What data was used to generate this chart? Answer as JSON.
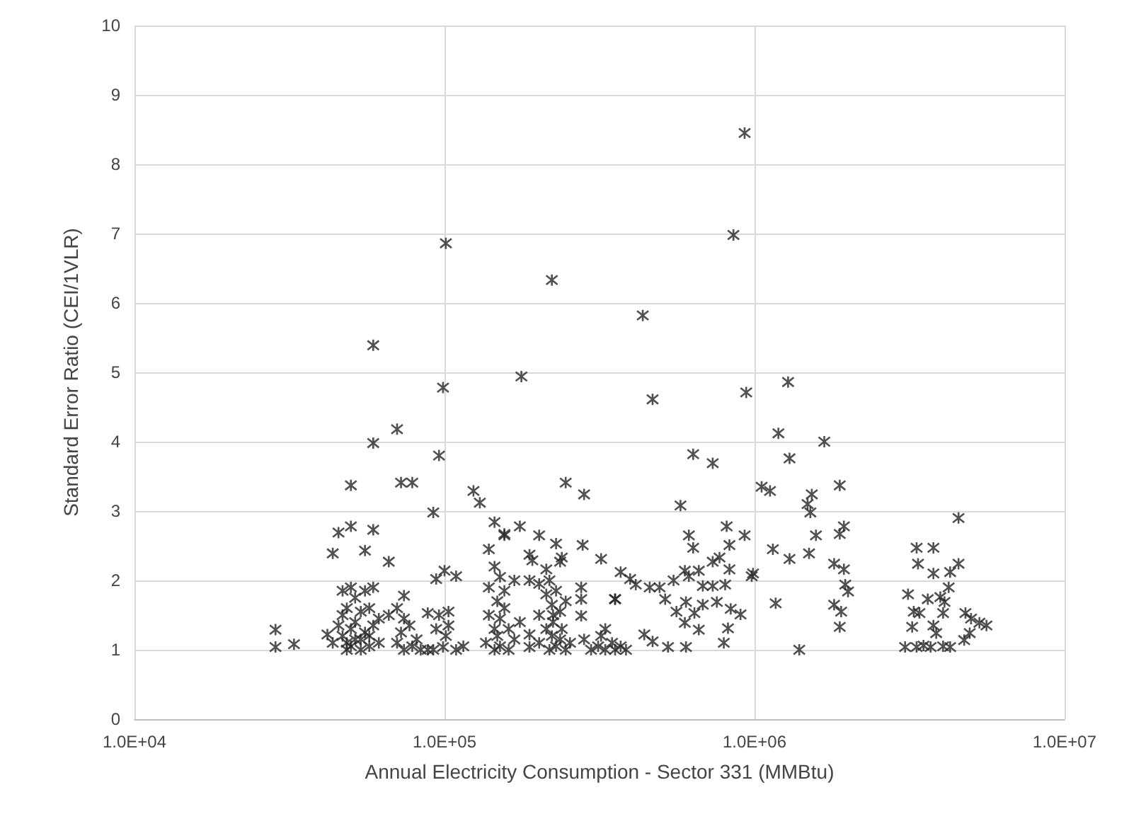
{
  "chart_data": {
    "type": "scatter",
    "xlabel": "Annual Electricity Consumption - Sector 331 (MMBtu)",
    "ylabel": "Standard Error Ratio (CEI/1VLR)",
    "log": "x",
    "grid": true,
    "marker": "cross",
    "xlim": [
      10000,
      10000000
    ],
    "xticks": [
      {
        "value": 10000,
        "label": "1.0E+04"
      },
      {
        "value": 100000,
        "label": "1.0E+05"
      },
      {
        "value": 1000000,
        "label": "1.0E+06"
      },
      {
        "value": 10000000,
        "label": "1.0E+07"
      }
    ],
    "ylim": [
      0,
      10
    ],
    "yticks": [
      0,
      1,
      2,
      3,
      4,
      5,
      6,
      7,
      8,
      9,
      10
    ],
    "series": [
      {
        "color": "#262626",
        "x": [
          28500,
          28500,
          32700,
          41900,
          49900,
          58900,
          70300,
          96000,
          98900,
          72400,
          78700,
          92000,
          124000,
          130000,
          145000,
          156000,
          45500,
          49900,
          58900,
          43600,
          55400,
          66100,
          94000,
          100000,
          109000,
          74000,
          929000,
          855000,
          101000,
          222000,
          436000,
          58900,
          46900,
          46900,
          46900,
          48400,
          48400,
          49900,
          49900,
          49900,
          51500,
          51500,
          51500,
          53700,
          53700,
          55400,
          55400,
          57200,
          57200,
          58900,
          58900,
          61400,
          61400,
          57200,
          53700,
          48400,
          45500,
          43600,
          66100,
          70300,
          72400,
          74000,
          77100,
          78700,
          81300,
          83800,
          74000,
          70300,
          88300,
          88300,
          92000,
          94000,
          96000,
          98900,
          101000,
          103000,
          103000,
          109000,
          115000,
          136000,
          139000,
          139000,
          139000,
          145000,
          145000,
          145000,
          148000,
          148000,
          151000,
          151000,
          151000,
          156000,
          156000,
          161000,
          161000,
          168000,
          168000,
          175000,
          156000,
          175000,
          202000,
          229000,
          279000,
          320000,
          246000,
          282000,
          177000,
          469000,
          940000,
          634000,
          733000,
          577000,
          1054000,
          614000,
          634000,
          813000,
          830000,
          929000,
          188000,
          192000,
          213000,
          236000,
          239000,
          370000,
          397000,
          414000,
          459000,
          494000,
          515000,
          355000,
          548000,
          596000,
          661000,
          614000,
          733000,
          771000,
          830000,
          681000,
          733000,
          804000,
          989000,
          601000,
          681000,
          756000,
          838000,
          901000,
          560000,
          596000,
          640000,
          661000,
          821000,
          441000,
          469000,
          526000,
          601000,
          796000,
          276000,
          276000,
          276000,
          355000,
          188000,
          188000,
          188000,
          202000,
          202000,
          202000,
          213000,
          213000,
          218000,
          222000,
          222000,
          224000,
          229000,
          229000,
          236000,
          236000,
          239000,
          246000,
          246000,
          254000,
          218000,
          224000,
          282000,
          297000,
          313000,
          320000,
          330000,
          347000,
          355000,
          370000,
          385000,
          330000,
          1283000,
          1194000,
          1679000,
          1297000,
          1122000,
          1883000,
          1530000,
          1483000,
          1514000,
          4550000,
          1942000,
          1883000,
          1578000,
          1146000,
          1297000,
          1499000,
          1806000,
          1942000,
          979000,
          1962000,
          2003000,
          1806000,
          1903000,
          1883000,
          1170000,
          1394000,
          3333000,
          3776000,
          3368000,
          4550000,
          3776000,
          4275000,
          4229000,
          3127000,
          3621000,
          3974000,
          4100000,
          3262000,
          3404000,
          4057000,
          4790000,
          4994000,
          5314000,
          5600000,
          3225000,
          3776000,
          3855000,
          4944000,
          4745000,
          3060000,
          3333000,
          3508000,
          3698000,
          4057000,
          4275000
        ],
        "values": [
          1.29,
          1.04,
          1.08,
          1.22,
          3.37,
          3.98,
          4.18,
          3.8,
          4.78,
          3.41,
          3.41,
          2.98,
          3.29,
          3.12,
          2.84,
          2.67,
          2.69,
          2.78,
          2.73,
          2.39,
          2.43,
          2.27,
          2.02,
          2.14,
          2.06,
          1.78,
          8.45,
          6.98,
          6.86,
          6.33,
          5.82,
          5.39,
          1.85,
          1.5,
          1.2,
          1.6,
          1.1,
          1.9,
          1.3,
          1.05,
          1.75,
          1.4,
          1.15,
          1.55,
          1.0,
          1.85,
          1.25,
          1.6,
          1.05,
          1.9,
          1.35,
          1.45,
          1.1,
          1.2,
          1.15,
          1.0,
          1.35,
          1.1,
          1.5,
          1.1,
          1.25,
          1.0,
          1.35,
          1.05,
          1.15,
          1.0,
          1.45,
          1.6,
          1.53,
          1.0,
          1.0,
          1.3,
          1.5,
          1.04,
          1.2,
          1.55,
          1.35,
          1.0,
          1.05,
          1.1,
          2.45,
          1.9,
          1.5,
          2.2,
          1.3,
          1.0,
          1.7,
          1.2,
          2.05,
          1.45,
          1.05,
          1.85,
          1.6,
          1.3,
          1.0,
          1.15,
          2.0,
          1.4,
          2.65,
          2.78,
          2.65,
          2.53,
          2.51,
          2.31,
          3.41,
          3.24,
          4.94,
          4.61,
          4.71,
          3.82,
          3.69,
          3.08,
          3.35,
          2.65,
          2.47,
          2.78,
          2.51,
          2.65,
          2.37,
          2.29,
          2.16,
          2.27,
          2.33,
          2.12,
          2.02,
          1.94,
          1.9,
          1.9,
          1.73,
          1.73,
          2.0,
          2.14,
          2.14,
          2.06,
          2.27,
          2.33,
          2.16,
          1.92,
          1.92,
          1.94,
          2.1,
          1.69,
          1.65,
          1.69,
          1.59,
          1.51,
          1.55,
          1.39,
          1.53,
          1.29,
          1.31,
          1.22,
          1.12,
          1.04,
          1.04,
          1.1,
          1.9,
          1.73,
          1.49,
          1.73,
          2.0,
          1.22,
          1.04,
          1.95,
          1.5,
          1.1,
          1.8,
          1.3,
          1.0,
          1.65,
          1.2,
          1.4,
          1.05,
          1.85,
          1.55,
          1.15,
          1.3,
          1.0,
          1.7,
          1.1,
          2.0,
          1.5,
          1.15,
          1.0,
          1.05,
          1.2,
          1.0,
          1.1,
          1.0,
          1.05,
          1.0,
          1.3,
          4.86,
          4.12,
          4.0,
          3.76,
          3.29,
          3.37,
          3.24,
          3.1,
          2.98,
          2.9,
          2.78,
          2.67,
          2.65,
          2.45,
          2.31,
          2.39,
          2.24,
          2.16,
          2.06,
          1.94,
          1.84,
          1.65,
          1.55,
          1.33,
          1.67,
          1.0,
          2.47,
          2.47,
          2.24,
          2.24,
          2.1,
          2.12,
          1.9,
          1.8,
          1.73,
          1.76,
          1.69,
          1.55,
          1.53,
          1.53,
          1.53,
          1.45,
          1.39,
          1.35,
          1.33,
          1.35,
          1.24,
          1.24,
          1.14,
          1.04,
          1.04,
          1.06,
          1.04,
          1.05,
          1.04
        ]
      }
    ]
  }
}
